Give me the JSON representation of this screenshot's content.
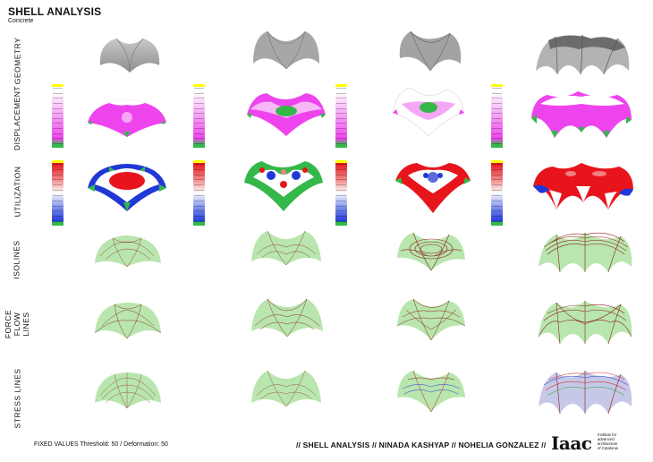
{
  "header": {
    "title": "SHELL ANALYSIS",
    "subtitle": "Concrete"
  },
  "rows": [
    {
      "label": "GEOMETRY"
    },
    {
      "label": "DISPLACEMENT"
    },
    {
      "label": "UTILIZATION"
    },
    {
      "label": "ISOLINES"
    },
    {
      "label": "FORCE FLOW LINES"
    },
    {
      "label": "STRESS LINES"
    }
  ],
  "columns": [
    "column-1",
    "column-2",
    "column-3",
    "column-4"
  ],
  "colors": {
    "geometry": "#9a9a9a",
    "displacement_hot": "#ee44ee",
    "displacement_cold": "#ffffff",
    "low_value_green": "#35b84a",
    "utilization_high": "#e8141c",
    "utilization_mid": "#ffffff",
    "utilization_low": "#2038d8",
    "line_surface_fill": "#b8e6ae",
    "isoline_stroke": "#8b1f16",
    "force_flow_stroke": "#8b1f16",
    "stress_line_mixed_1": "#3f57d6",
    "stress_line_mixed_2": "#d13a3a"
  },
  "footer": {
    "settings": "FIXED VALUES Threshold: 50 / Deformation: 50",
    "credits": "// SHELL  ANALYSIS // NINADA KASHYAP // NOHELIA GONZALEZ //"
  },
  "logo": {
    "mark": "Iaac",
    "lines": [
      "Institute for",
      "advanced",
      "architecture",
      "of Catalonia"
    ]
  }
}
